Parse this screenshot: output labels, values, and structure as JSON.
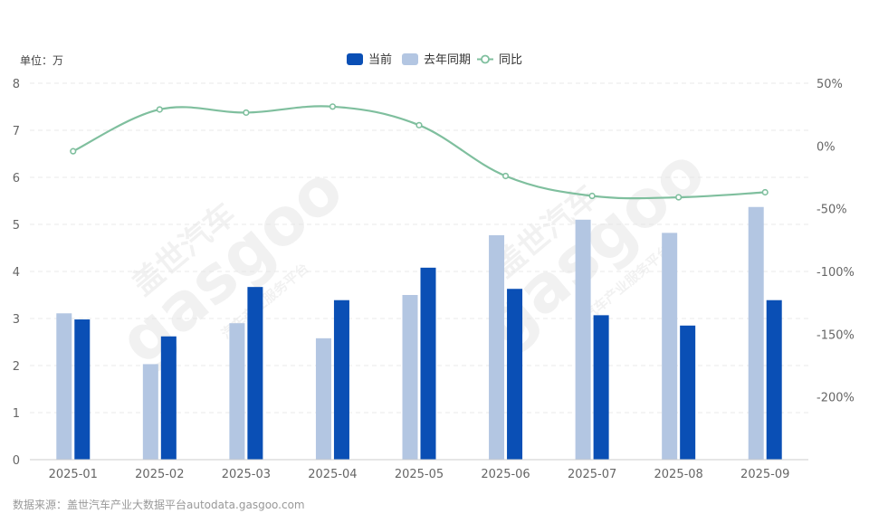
{
  "chart_data": {
    "type": "bar",
    "unit_label": "单位：万",
    "categories": [
      "2025-01",
      "2025-02",
      "2025-03",
      "2025-04",
      "2025-05",
      "2025-06",
      "2025-07",
      "2025-08",
      "2025-09"
    ],
    "series": [
      {
        "name": "当前",
        "type": "bar",
        "axis": "left",
        "color": "#0a4fb5",
        "values": [
          2.98,
          2.62,
          3.67,
          3.39,
          4.08,
          3.63,
          3.07,
          2.85,
          3.39
        ]
      },
      {
        "name": "去年同期",
        "type": "bar",
        "axis": "left",
        "color": "#b3c6e2",
        "values": [
          3.11,
          2.03,
          2.9,
          2.58,
          3.5,
          4.77,
          5.1,
          4.82,
          5.37
        ]
      },
      {
        "name": "同比",
        "type": "line",
        "axis": "right",
        "color": "#7fbf9e",
        "values": [
          -4.2,
          29.1,
          26.6,
          31.4,
          16.6,
          -23.9,
          -39.8,
          -40.9,
          -36.9
        ]
      }
    ],
    "y_left": {
      "min": 0,
      "max": 8,
      "ticks": [
        0,
        1,
        2,
        3,
        4,
        5,
        6,
        7,
        8
      ]
    },
    "y_right": {
      "min": -250,
      "max": 50,
      "ticks": [
        50,
        0,
        -50,
        -100,
        -150,
        -200
      ],
      "tick_labels": [
        "50%",
        "0%",
        "-50%",
        "-100%",
        "-150%",
        "-200%"
      ]
    },
    "legend_position": "top-center",
    "grid": true
  },
  "source_text": "数据来源：盖世汽车产业大数据平台autodata.gasgoo.com",
  "watermark": {
    "brand_cn": "盖世汽车",
    "brand_en": "gasgoo",
    "sub": "汽车产业服务平台"
  }
}
